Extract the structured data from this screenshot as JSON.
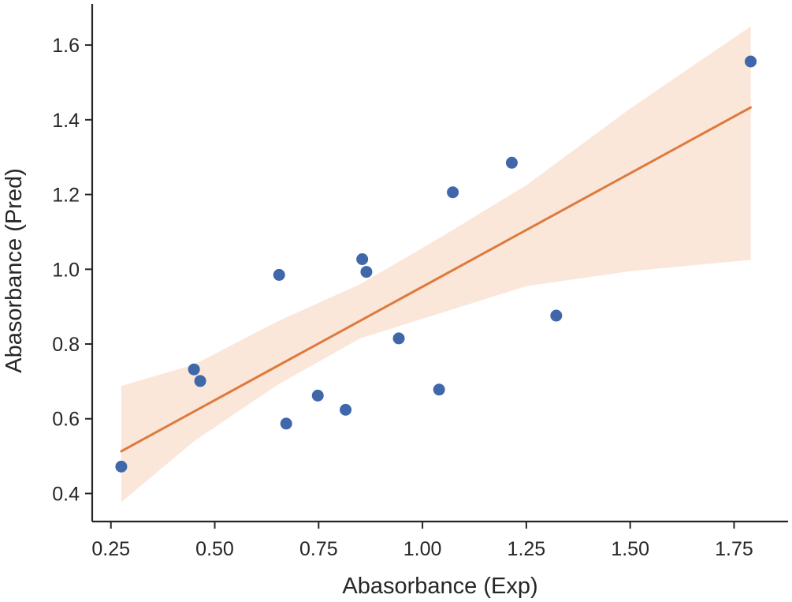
{
  "chart_data": {
    "type": "scatter",
    "title": "",
    "xlabel": "Abasorbance (Exp)",
    "ylabel": "Abasorbance (Pred)",
    "xlim": [
      0.205,
      1.88
    ],
    "ylim": [
      0.325,
      1.71
    ],
    "xticks": [
      0.25,
      0.5,
      0.75,
      1.0,
      1.25,
      1.5,
      1.75
    ],
    "xtick_labels": [
      "0.25",
      "0.50",
      "0.75",
      "1.00",
      "1.25",
      "1.50",
      "1.75"
    ],
    "yticks": [
      0.4,
      0.6,
      0.8,
      1.0,
      1.2,
      1.4,
      1.6
    ],
    "ytick_labels": [
      "0.4",
      "0.6",
      "0.8",
      "1.0",
      "1.2",
      "1.4",
      "1.6"
    ],
    "points": {
      "x": [
        0.275,
        0.45,
        0.465,
        0.655,
        0.672,
        0.748,
        0.815,
        0.855,
        0.865,
        0.943,
        1.04,
        1.073,
        1.215,
        1.322,
        1.79
      ],
      "y": [
        0.472,
        0.732,
        0.701,
        0.985,
        0.587,
        0.662,
        0.624,
        1.027,
        0.993,
        0.815,
        0.678,
        1.206,
        1.285,
        0.876,
        1.556
      ]
    },
    "regression": {
      "x": [
        0.275,
        1.79
      ],
      "y": [
        0.513,
        1.433
      ]
    },
    "confidence_band": {
      "x": [
        0.275,
        0.45,
        0.65,
        0.85,
        1.05,
        1.25,
        1.5,
        1.79
      ],
      "upper": [
        0.688,
        0.745,
        0.86,
        0.96,
        1.09,
        1.225,
        1.43,
        1.65
      ],
      "lower": [
        0.377,
        0.54,
        0.69,
        0.815,
        0.885,
        0.955,
        0.995,
        1.025
      ]
    },
    "colors": {
      "point": "#4067aa",
      "line": "#dd7a3c",
      "band": "#fbe6da",
      "axis": "#262626"
    },
    "grid": false,
    "legend": "none"
  }
}
